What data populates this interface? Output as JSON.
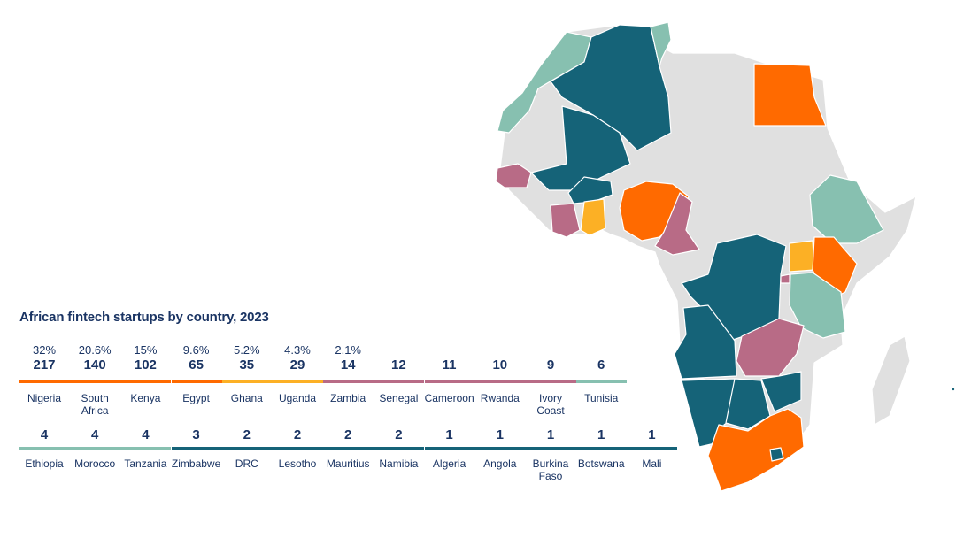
{
  "chart_data": {
    "type": "bar",
    "title": "African fintech startups by country, 2023",
    "categories": [
      "Nigeria",
      "South Africa",
      "Kenya",
      "Egypt",
      "Ghana",
      "Uganda",
      "Zambia",
      "Senegal",
      "Cameroon",
      "Rwanda",
      "Ivory Coast",
      "Tunisia",
      "Ethiopia",
      "Morocco",
      "Tanzania",
      "Zimbabwe",
      "DRC",
      "Lesotho",
      "Mauritius",
      "Namibia",
      "Algeria",
      "Angola",
      "Burkina Faso",
      "Botswana",
      "Mali"
    ],
    "values": [
      "217",
      "140",
      "102",
      "65",
      "35",
      "29",
      "14",
      "12",
      "11",
      "10",
      "9",
      "6",
      "4",
      "4",
      "4",
      "3",
      "2",
      "2",
      "2",
      "2",
      "1",
      "1",
      "1",
      "1",
      "1"
    ],
    "shares": [
      "32%",
      "20.6%",
      "15%",
      "9.6%",
      "5.2%",
      "4.3%",
      "2.1%",
      "",
      "",
      "",
      "",
      "",
      "",
      "",
      "",
      "",
      "",
      "",
      "",
      "",
      "",
      "",
      "",
      "",
      ""
    ],
    "name_lines": [
      [
        "Nigeria"
      ],
      [
        "South",
        "Africa"
      ],
      [
        "Kenya"
      ],
      [
        "Egypt"
      ],
      [
        "Ghana"
      ],
      [
        "Uganda"
      ],
      [
        "Zambia"
      ],
      [
        "Senegal"
      ],
      [
        "Cameroon"
      ],
      [
        "Rwanda"
      ],
      [
        "Ivory",
        "Coast"
      ],
      [
        "Tunisia"
      ],
      [
        "Ethiopia"
      ],
      [
        "Morocco"
      ],
      [
        "Tanzania"
      ],
      [
        "Zimbabwe"
      ],
      [
        "DRC"
      ],
      [
        "Lesotho"
      ],
      [
        "Mauritius"
      ],
      [
        "Namibia"
      ],
      [
        "Algeria"
      ],
      [
        "Angola"
      ],
      [
        "Burkina",
        "Faso"
      ],
      [
        "Botswana"
      ],
      [
        "Mali"
      ]
    ],
    "tiers": [
      "orange",
      "orange",
      "orange",
      "orange",
      "yellow",
      "yellow",
      "pink",
      "pink",
      "pink",
      "pink",
      "pink",
      "green",
      "green",
      "green",
      "green",
      "navy",
      "navy",
      "navy",
      "navy",
      "navy",
      "navy",
      "navy",
      "navy",
      "navy",
      "navy"
    ],
    "colors": {
      "orange": "#ff6a00",
      "yellow": "#fcb025",
      "pink": "#b86b86",
      "green": "#87c0b0",
      "navy": "#156378",
      "grey": "#e0e0e0"
    }
  }
}
